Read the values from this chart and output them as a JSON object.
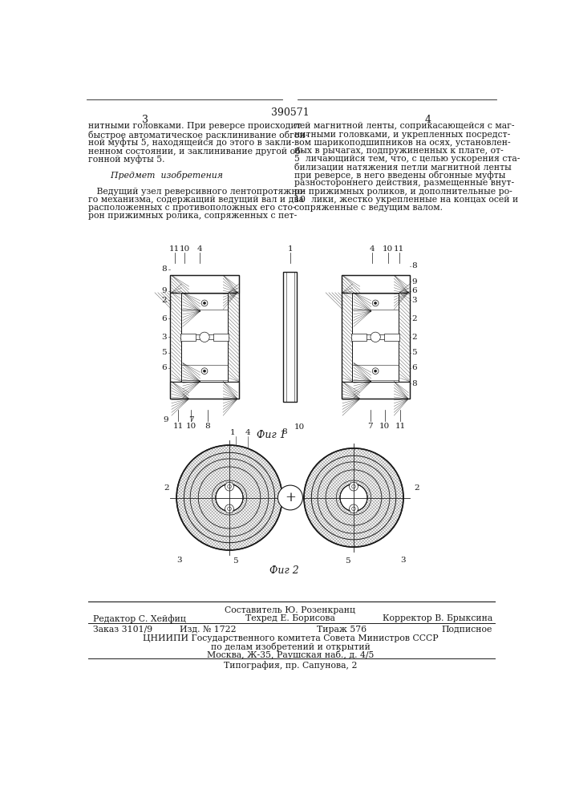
{
  "patent_number": "390571",
  "page_left": "3",
  "page_right": "4",
  "text_left": [
    "нитными головками. При реверсе происходит",
    "быстрое автоматическое расклинивание обгон-",
    "ной муфты 5, находящейся до этого в закли-",
    "ненном состоянии, и заклинивание другой об-",
    "гонной муфты 5.",
    "",
    "        Предмет  изобретения",
    "",
    "   Ведущий узел реверсивного лентопротяжно-",
    "го механизма, содержащий ведущий вал и два",
    "расположенных с противоположных его сто-",
    "рон прижимных ролика, сопряженных с пет-"
  ],
  "text_right": [
    "лей магнитной ленты, соприкасающейся с маг-",
    "нитными головками, и укрепленных посредст-",
    "вом шарикоподшипников на осях, установлен-",
    "ных в рычагах, подпружиненных к плате, от-",
    "5  личающийся тем, что, с целью ускорения ста-",
    "билизации натяжения петли магнитной ленты",
    "при реверсе, в него введены обгонные муфты",
    "разностороннего действия, размещенные внут-",
    "ри прижимных роликов, и дополнительные ро-",
    "10  лики, жестко укрепленные на концах осей и",
    "сопряженные с ведущим валом."
  ],
  "fig1_label": "Фиг 1",
  "fig2_label": "Фиг 2",
  "footer_sostavitel": "Составитель Ю. Розенкранц",
  "footer_redaktor": "Редактор С. Хейфиц",
  "footer_tehred": "Техред Е. Борисова",
  "footer_korrektor": "Корректор В. Брыксина",
  "footer_zakaz": "Заказ 3101/9",
  "footer_izd": "Изд. № 1722",
  "footer_tirazh": "Тираж 576",
  "footer_podpisnoe": "Подписное",
  "footer_cnipi": "ЦНИИПИ Государственного комитета Совета Министров СССР",
  "footer_po_delam": "по делам изобретений и открытий",
  "footer_moskva": "Москва, Ж-35, Раушская наб., д. 4/5",
  "footer_tipografia": "Типография, пр. Сапунова, 2",
  "bg_color": "#ffffff",
  "text_color": "#1a1a1a",
  "line_color": "#1a1a1a"
}
